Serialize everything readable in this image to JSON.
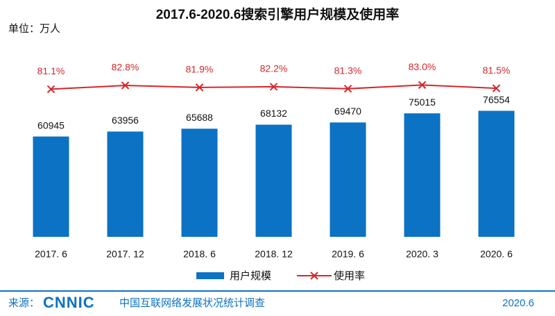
{
  "chart_data": {
    "type": "bar-line",
    "title": "2017.6-2020.6搜索引擎用户规模及使用率",
    "unit_label": "单位：万人",
    "categories": [
      "2017. 6",
      "2017. 12",
      "2018. 6",
      "2018. 12",
      "2019. 6",
      "2020. 3",
      "2020. 6"
    ],
    "series": [
      {
        "name": "用户规模",
        "type": "bar",
        "color": "#0b72c4",
        "values": [
          60945,
          63956,
          65688,
          68132,
          69470,
          75015,
          76554
        ]
      },
      {
        "name": "使用率",
        "type": "line",
        "axis": "y2",
        "color": "#d7262b",
        "values": [
          81.1,
          82.8,
          81.9,
          82.2,
          81.3,
          83.0,
          81.5
        ],
        "value_labels": [
          "81.1%",
          "82.8%",
          "81.9%",
          "82.2%",
          "81.3%",
          "83.0%",
          "81.5%"
        ]
      }
    ],
    "ylim": [
      0,
      127000
    ],
    "y2lim": [
      14,
      109
    ],
    "grid": false,
    "legend": "bottom",
    "footer": {
      "source": "来源：",
      "logo": "CNNIC",
      "survey": "中国互联网络发展状况统计调查",
      "date": "2020.6"
    }
  }
}
